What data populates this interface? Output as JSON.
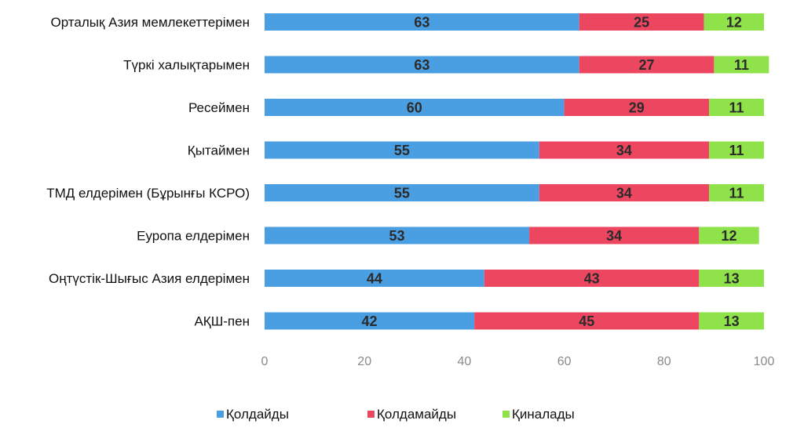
{
  "chart_data": {
    "type": "bar",
    "orientation": "horizontal",
    "stacked": true,
    "categories": [
      "Орталық Азия мемлекеттерімен",
      "Түркі халықтарымен",
      "Ресеймен",
      "Қытаймен",
      "ТМД елдерімен (Бұрынғы КСРО)",
      "Еуропа елдерімен",
      "Оңтүстік-Шығыс Азия елдерімен",
      "АҚШ-пен"
    ],
    "series": [
      {
        "name": "Қолдайды",
        "color": "#4a9ee2",
        "values": [
          63,
          63,
          60,
          55,
          55,
          53,
          44,
          42
        ]
      },
      {
        "name": "Қолдамайды",
        "color": "#ec4660",
        "values": [
          25,
          27,
          29,
          34,
          34,
          34,
          43,
          45
        ]
      },
      {
        "name": "Қиналады",
        "color": "#8fe24a",
        "values": [
          12,
          11,
          11,
          11,
          11,
          12,
          13,
          13
        ]
      }
    ],
    "xlim": [
      0,
      100
    ],
    "xticks": [
      0,
      20,
      40,
      60,
      80,
      100
    ],
    "grid": false,
    "legend_position": "bottom"
  }
}
